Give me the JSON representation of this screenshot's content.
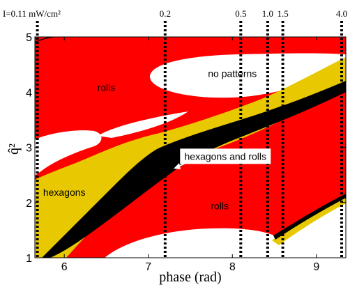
{
  "chart_data": {
    "type": "phase_diagram",
    "xlabel": "phase (rad)",
    "ylabel": "q̂²",
    "xlim": [
      5.65,
      9.35
    ],
    "ylim": [
      1,
      5
    ],
    "x_ticks": [
      "6",
      "7",
      "8",
      "9"
    ],
    "y_ticks": [
      "1",
      "2",
      "3",
      "4",
      "5"
    ],
    "grid": false,
    "intensity_lines": [
      {
        "label": "I=0.11 mW/cm²",
        "x": 5.68
      },
      {
        "label": "0.2",
        "x": 7.2
      },
      {
        "label": "0.5",
        "x": 8.1
      },
      {
        "label": "1.0",
        "x": 8.42
      },
      {
        "label": "1.5",
        "x": 8.6
      },
      {
        "label": "4.0",
        "x": 9.3
      }
    ],
    "regions": [
      {
        "label": "rolls",
        "color": "#ff0000"
      },
      {
        "label": "hexagons",
        "color": "#e8c800"
      },
      {
        "label": "hexagons and rolls",
        "color": "#000000"
      },
      {
        "label": "no patterns",
        "color": "#ffffff"
      }
    ],
    "region_labels": [
      {
        "text": "no patterns",
        "x": 8.0,
        "y": 4.3
      },
      {
        "text": "rolls",
        "x": 6.5,
        "y": 4.05
      },
      {
        "text": "hexagons",
        "x": 6.0,
        "y": 2.15
      },
      {
        "text": "rolls",
        "x": 7.85,
        "y": 1.9
      },
      {
        "text": "hexagons and rolls",
        "x": 8.0,
        "y": 2.8
      }
    ]
  }
}
